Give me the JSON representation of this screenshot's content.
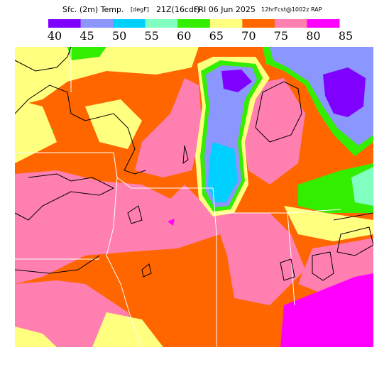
{
  "header": {
    "title": "Sfc. (2m) Temp.",
    "units": "[degF]",
    "valid": "21Z(16cdt)",
    "date": "FRI 06 Jun 2025",
    "forecast": "12hrFcst@1002z RAP"
  },
  "colorbar": {
    "colors": [
      "#8000ff",
      "#8c96ff",
      "#00d0ff",
      "#80ffc0",
      "#33ee00",
      "#ffff80",
      "#ff6600",
      "#ff80b0",
      "#ff00ff"
    ],
    "labels": [
      40,
      45,
      50,
      55,
      60,
      65,
      70,
      75,
      80,
      85
    ]
  }
}
